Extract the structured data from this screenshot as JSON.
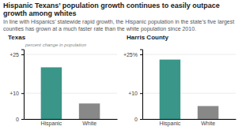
{
  "title": "Hispanic Texans’ population growth continues to easily outpace growth among whites",
  "subtitle": "In line with Hispanics’ statewide rapid growth, the Hispanic population in the state’s five largest counties has grown at a much faster rate than the white population since 2010.",
  "chart_data": [
    {
      "type": "bar",
      "title": "Texas",
      "categories": [
        "Hispanic",
        "White"
      ],
      "values": [
        20,
        6
      ],
      "colors": [
        "#3a9688",
        "#888888"
      ],
      "ylim": [
        0,
        27
      ],
      "yticks": [
        0,
        {
          "value": 10,
          "label": "+10"
        },
        {
          "value": 25,
          "label": "+25"
        }
      ],
      "grid": true,
      "annotation": "percent change in population"
    },
    {
      "type": "bar",
      "title": "Harris County",
      "categories": [
        "Hispanic",
        "White"
      ],
      "values": [
        23,
        5
      ],
      "colors": [
        "#3a9688",
        "#888888"
      ],
      "ylim": [
        0,
        27
      ],
      "yticks": [
        0,
        {
          "value": 10,
          "label": "+10"
        },
        {
          "value": 25,
          "label": "+25%"
        }
      ],
      "grid": true
    }
  ]
}
